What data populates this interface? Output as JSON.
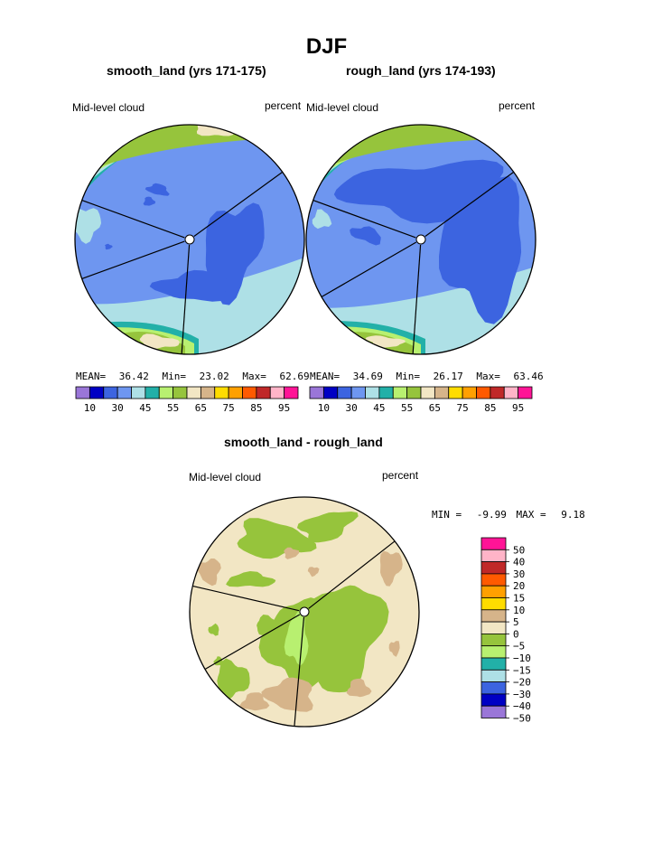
{
  "title": "DJF",
  "panels": [
    {
      "id": "smooth",
      "title": "smooth_land (yrs 171-175)",
      "variable": "Mid-level cloud",
      "units": "percent",
      "stats": {
        "mean_label": "MEAN=",
        "mean": "36.42",
        "min_label": "Min=",
        "min": "23.02",
        "max_label": "Max=",
        "max": "62.69"
      }
    },
    {
      "id": "rough",
      "title": "rough_land (yrs 174-193)",
      "variable": "Mid-level cloud",
      "units": "percent",
      "stats": {
        "mean_label": "MEAN=",
        "mean": "34.69",
        "min_label": "Min=",
        "min": "26.17",
        "max_label": "Max=",
        "max": "63.46"
      }
    },
    {
      "id": "diff",
      "title": "smooth_land - rough_land",
      "variable": "Mid-level cloud",
      "units": "percent",
      "stats": {
        "min_label": "MIN =",
        "min": "-9.99",
        "max_label": "MAX =",
        "max": "9.18"
      }
    }
  ],
  "chart_data": [
    {
      "type": "heatmap",
      "title": "smooth_land (yrs 171-175)",
      "projection": "polar stereographic",
      "field": "Mid-level cloud",
      "units": "percent",
      "colorbar_levels": [
        10,
        15,
        20,
        25,
        30,
        35,
        40,
        45,
        50,
        55,
        60,
        65,
        70,
        75,
        80,
        85,
        90,
        95
      ],
      "colorbar_tick_labels": [
        "10",
        "30",
        "45",
        "55",
        "65",
        "75",
        "85",
        "95"
      ],
      "colorbar_colors": [
        "#9a76d8",
        "#0000c4",
        "#3c64e0",
        "#6e96f0",
        "#aee0e6",
        "#22b0a8",
        "#b8f070",
        "#96c43c",
        "#f2e6c4",
        "#d6b48a",
        "#ffdc00",
        "#ffa000",
        "#ff5a00",
        "#c02828",
        "#ffb4c8",
        "#ff1496"
      ],
      "mean": 36.42,
      "min": 23.02,
      "max": 62.69
    },
    {
      "type": "heatmap",
      "title": "rough_land (yrs 174-193)",
      "projection": "polar stereographic",
      "field": "Mid-level cloud",
      "units": "percent",
      "colorbar_levels": [
        10,
        15,
        20,
        25,
        30,
        35,
        40,
        45,
        50,
        55,
        60,
        65,
        70,
        75,
        80,
        85,
        90,
        95
      ],
      "colorbar_tick_labels": [
        "10",
        "30",
        "45",
        "55",
        "65",
        "75",
        "85",
        "95"
      ],
      "colorbar_colors": [
        "#9a76d8",
        "#0000c4",
        "#3c64e0",
        "#6e96f0",
        "#aee0e6",
        "#22b0a8",
        "#b8f070",
        "#96c43c",
        "#f2e6c4",
        "#d6b48a",
        "#ffdc00",
        "#ffa000",
        "#ff5a00",
        "#c02828",
        "#ffb4c8",
        "#ff1496"
      ],
      "mean": 34.69,
      "min": 26.17,
      "max": 63.46
    },
    {
      "type": "heatmap",
      "title": "smooth_land - rough_land",
      "projection": "polar stereographic",
      "field": "Mid-level cloud",
      "units": "percent",
      "colorbar_levels": [
        -50,
        -40,
        -30,
        -20,
        -15,
        -10,
        -5,
        0,
        5,
        10,
        15,
        20,
        30,
        40,
        50
      ],
      "colorbar_tick_labels": [
        "50",
        "40",
        "30",
        "20",
        "15",
        "10",
        "5",
        "0",
        "−5",
        "−10",
        "−15",
        "−20",
        "−30",
        "−40",
        "−50"
      ],
      "colorbar_colors": [
        "#ff1496",
        "#ffb4c8",
        "#c02828",
        "#ff5a00",
        "#ffa000",
        "#ffdc00",
        "#d6b48a",
        "#f2e6c4",
        "#96c43c",
        "#b8f070",
        "#22b0a8",
        "#aee0e6",
        "#3c64e0",
        "#0000c4",
        "#9a76d8"
      ],
      "min": -9.99,
      "max": 9.18
    }
  ]
}
